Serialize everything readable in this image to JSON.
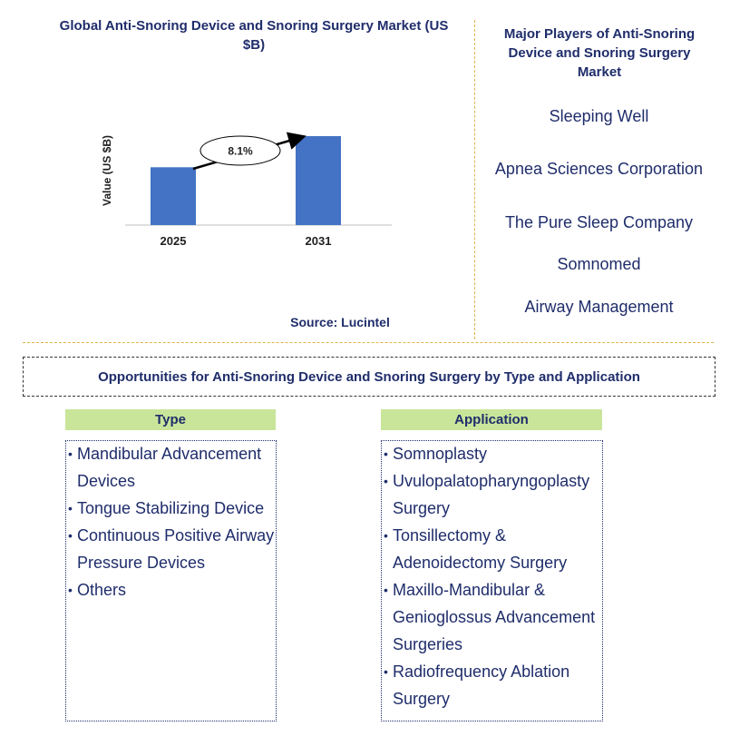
{
  "chart_data": {
    "type": "bar",
    "title": "Global Anti-Snoring Device and Snoring Surgery Market (US $B)",
    "ylabel": "Value (US $B)",
    "categories": [
      "2025",
      "2031"
    ],
    "values": [
      0.65,
      1.0
    ],
    "annotation": "8.1%",
    "bar_color": "#4472c4"
  },
  "source": "Source: Lucintel",
  "players": {
    "title": "Major Players of Anti-Snoring Device and Snoring Surgery Market",
    "items": [
      "Sleeping Well",
      "Apnea Sciences Corporation",
      "The Pure Sleep Company",
      "Somnomed",
      "Airway Management"
    ]
  },
  "opportunities": {
    "title": "Opportunities for Anti-Snoring Device and Snoring Surgery by Type and Application",
    "type": {
      "header": "Type",
      "items": [
        "Mandibular Advancement Devices",
        "Tongue Stabilizing Device",
        "Continuous Positive Airway Pressure Devices",
        "Others"
      ]
    },
    "application": {
      "header": "Application",
      "items": [
        "Somnoplasty",
        "Uvulopalatopharyngoplasty Surgery",
        "Tonsillectomy & Adenoidectomy Surgery",
        "Maxillo-Mandibular & Genioglossus Advancement Surgeries",
        "Radiofrequency Ablation Surgery"
      ]
    }
  }
}
